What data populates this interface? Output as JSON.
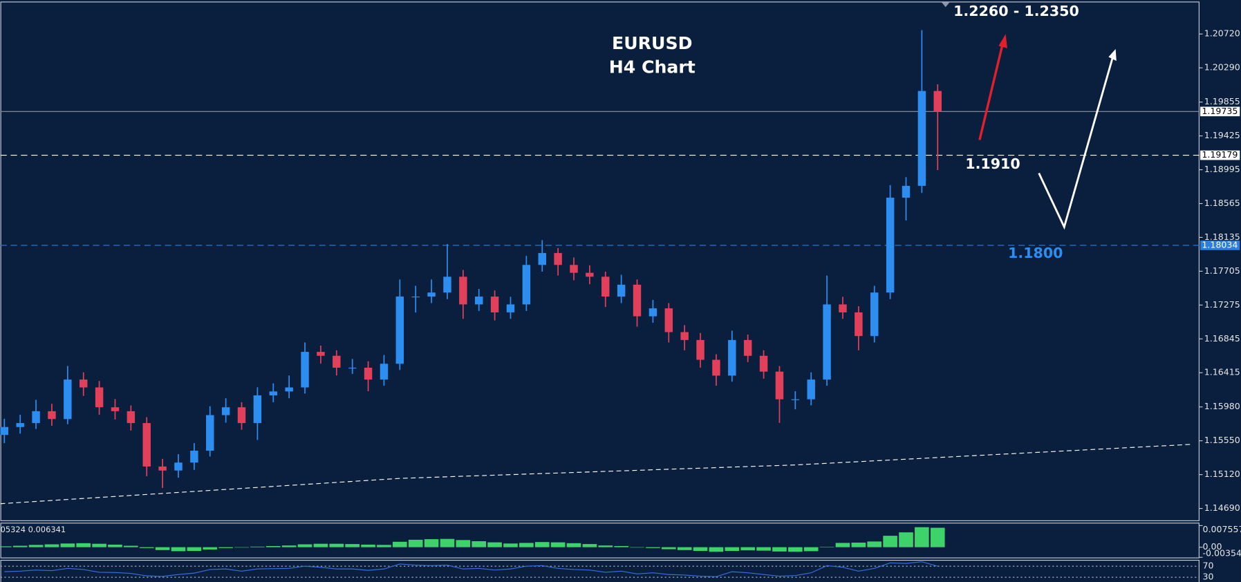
{
  "chart_data": [
    {
      "type": "candlestick",
      "title": "EURUSD",
      "subtitle": "H4 Chart",
      "up_color": "#2b8ef0",
      "down_color": "#e2405a",
      "open": [
        1.15625,
        1.15725,
        1.15775,
        1.15926,
        1.15826,
        1.16328,
        1.16228,
        1.15976,
        1.15926,
        1.15775,
        1.15223,
        1.15172,
        1.15273,
        1.15424,
        1.15876,
        1.15976,
        1.15775,
        1.16127,
        1.16177,
        1.16228,
        1.1668,
        1.1663,
        1.16479,
        1.16479,
        1.16328,
        1.16529,
        1.17383,
        1.17383,
        1.17434,
        1.17635,
        1.17283,
        1.17383,
        1.17182,
        1.17283,
        1.17785,
        1.17936,
        1.17785,
        1.17685,
        1.17635,
        1.17383,
        1.17534,
        1.17132,
        1.17233,
        1.16931,
        1.16831,
        1.16579,
        1.16378,
        1.16831,
        1.1663,
        1.16429,
        1.16077,
        1.16077,
        1.16328,
        1.17283,
        1.17182,
        1.16881,
        1.17434,
        1.1864,
        1.1879,
        1.19996
      ],
      "high": [
        1.1583,
        1.1588,
        1.1607,
        1.1602,
        1.165,
        1.1642,
        1.1631,
        1.1608,
        1.16,
        1.1585,
        1.1532,
        1.1538,
        1.1552,
        1.1599,
        1.1609,
        1.1604,
        1.1623,
        1.1628,
        1.1638,
        1.168,
        1.1676,
        1.167,
        1.1659,
        1.1656,
        1.1664,
        1.176,
        1.1752,
        1.176,
        1.1805,
        1.1772,
        1.1748,
        1.1746,
        1.1738,
        1.179,
        1.181,
        1.18,
        1.1788,
        1.1778,
        1.177,
        1.1766,
        1.176,
        1.1734,
        1.173,
        1.1702,
        1.1692,
        1.1665,
        1.1695,
        1.169,
        1.167,
        1.165,
        1.1618,
        1.1642,
        1.1765,
        1.1738,
        1.1726,
        1.1752,
        1.188,
        1.189,
        1.2077,
        1.2008
      ],
      "low": [
        1.1552,
        1.1564,
        1.157,
        1.1574,
        1.1576,
        1.1612,
        1.1588,
        1.1582,
        1.1568,
        1.151,
        1.1495,
        1.1508,
        1.1518,
        1.1535,
        1.1578,
        1.1569,
        1.1556,
        1.1604,
        1.1609,
        1.1615,
        1.1653,
        1.1638,
        1.164,
        1.1618,
        1.1625,
        1.1645,
        1.1718,
        1.173,
        1.1735,
        1.171,
        1.172,
        1.1708,
        1.171,
        1.172,
        1.177,
        1.1765,
        1.1759,
        1.1754,
        1.1725,
        1.173,
        1.17,
        1.1705,
        1.168,
        1.167,
        1.1648,
        1.1625,
        1.163,
        1.1655,
        1.1634,
        1.15778,
        1.1595,
        1.16,
        1.1625,
        1.171,
        1.167,
        1.168,
        1.1735,
        1.1835,
        1.187,
        1.18991
      ],
      "close": [
        1.15725,
        1.15775,
        1.15926,
        1.15826,
        1.16328,
        1.16228,
        1.15976,
        1.15926,
        1.15775,
        1.15223,
        1.15172,
        1.15273,
        1.15424,
        1.15876,
        1.15976,
        1.15775,
        1.16127,
        1.16177,
        1.16228,
        1.1668,
        1.1663,
        1.16479,
        1.16479,
        1.16328,
        1.16529,
        1.17383,
        1.17383,
        1.17434,
        1.17635,
        1.17283,
        1.17383,
        1.17182,
        1.17283,
        1.17785,
        1.17936,
        1.17785,
        1.17685,
        1.17635,
        1.17383,
        1.17534,
        1.17132,
        1.17233,
        1.16931,
        1.16831,
        1.16579,
        1.16378,
        1.16831,
        1.1663,
        1.16429,
        1.16077,
        1.16077,
        1.16328,
        1.17283,
        1.17182,
        1.16881,
        1.17434,
        1.1864,
        1.1879,
        1.19996,
        1.19735
      ],
      "moving_average": {
        "color": "#ffffff",
        "x": [
          -0.25,
          25,
          50,
          75
        ],
        "values": [
          1.1475,
          1.15072,
          1.15243,
          1.15504
        ]
      },
      "levels": [
        {
          "value": 1.19735,
          "color": "#8a96a8",
          "dashed": false,
          "tag_color": "#ffffff",
          "tag_text_color": "#000000"
        },
        {
          "value": 1.19179,
          "color": "#ffffff",
          "dashed": true,
          "tag_color": "#ffffff",
          "tag_text_color": "#000000"
        },
        {
          "value": 1.18034,
          "color": "#2b7fe0",
          "dashed": true,
          "tag_color": "#2b7fe0",
          "tag_text_color": "#ffffff"
        }
      ],
      "annotations": [
        {
          "text": "1.2260 - 1.2350",
          "color": "#ffffff"
        },
        {
          "text": "1.1910",
          "color": "#ffffff"
        },
        {
          "text": "1.1800",
          "color": "#2b8ef0"
        }
      ],
      "ylim": [
        1.14539,
        1.21132
      ],
      "yticks": [
        {
          "value": 1.2072,
          "label": "1.20720"
        },
        {
          "value": 1.2029,
          "label": "1.20290"
        },
        1.19855,
        1.19425,
        1.18995,
        1.18565,
        1.18135,
        1.17705,
        1.17275,
        1.16845,
        1.16415,
        {
          "value": 1.1598,
          "label": "1.15980"
        },
        {
          "value": 1.1555,
          "label": "1.15550"
        },
        {
          "value": 1.1512,
          "label": "1.15120"
        },
        {
          "value": 1.1469,
          "label": "1.14690"
        }
      ]
    },
    {
      "type": "bar",
      "label": "05324 0.006341",
      "color": "#3ed36a",
      "values": [
        0.0003,
        0.0005,
        0.0008,
        0.001,
        0.0013,
        0.0014,
        0.0012,
        0.0009,
        0.0005,
        -0.0003,
        -0.001,
        -0.0014,
        -0.0013,
        -0.0008,
        -0.0003,
        -0.0001,
        0.0002,
        0.0004,
        0.0006,
        0.001,
        0.0012,
        0.0012,
        0.0011,
        0.0009,
        0.0008,
        0.0019,
        0.0026,
        0.0028,
        0.0029,
        0.0025,
        0.0021,
        0.0017,
        0.0013,
        0.0015,
        0.0018,
        0.0017,
        0.0014,
        0.0011,
        0.0006,
        0.0004,
        0.0,
        -0.0003,
        -0.0007,
        -0.001,
        -0.0013,
        -0.0016,
        -0.0013,
        -0.0011,
        -0.0012,
        -0.0015,
        -0.0016,
        -0.0014,
        0.0001,
        0.0015,
        0.0016,
        0.002,
        0.004,
        0.0052,
        0.007,
        0.0068
      ],
      "ylim": [
        -0.0036,
        0.0083
      ],
      "yticks": [
        0.007557,
        {
          "value": 0,
          "label": "0.00"
        },
        -0.00354
      ]
    },
    {
      "type": "line",
      "color": "#3a6fe0",
      "values": [
        50,
        52,
        56,
        54,
        62,
        58,
        48,
        47,
        44,
        35,
        33,
        40,
        45,
        58,
        60,
        52,
        60,
        61,
        62,
        70,
        66,
        60,
        60,
        55,
        60,
        78,
        74,
        72,
        74,
        60,
        62,
        56,
        60,
        70,
        72,
        62,
        58,
        56,
        48,
        52,
        42,
        46,
        40,
        38,
        34,
        32,
        50,
        46,
        40,
        34,
        36,
        46,
        72,
        66,
        52,
        62,
        82,
        80,
        86,
        70
      ],
      "ylim": [
        0,
        100
      ],
      "yticks": [
        70,
        30
      ]
    }
  ]
}
